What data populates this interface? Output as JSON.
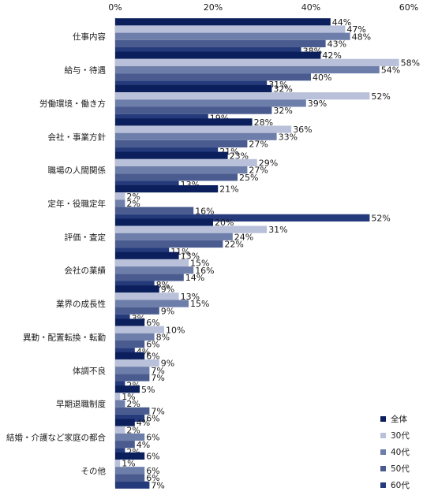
{
  "chart_data": {
    "type": "bar",
    "orientation": "horizontal",
    "categories": [
      "仕事内容",
      "給与・待遇",
      "労働環境・働き方",
      "会社・事業方針",
      "職場の人間関係",
      "定年・役職定年",
      "評価・査定",
      "会社の業績",
      "業界の成長性",
      "異動・配置転換・転勤",
      "体調不良",
      "早期退職制度",
      "結婚・介護など家庭の都合",
      "その他"
    ],
    "series": [
      {
        "name": "全体",
        "color": "#0b1f5c",
        "values": [
          44,
          42,
          32,
          28,
          23,
          21,
          20,
          13,
          9,
          6,
          6,
          5,
          4,
          6
        ]
      },
      {
        "name": "30代",
        "color": "#b9c1da",
        "values": [
          47,
          58,
          52,
          36,
          29,
          2,
          31,
          15,
          13,
          10,
          9,
          1,
          2,
          1
        ]
      },
      {
        "name": "40代",
        "color": "#6e7eaa",
        "values": [
          48,
          54,
          39,
          33,
          27,
          2,
          24,
          16,
          15,
          8,
          7,
          2,
          6,
          6
        ]
      },
      {
        "name": "50代",
        "color": "#4a5c8f",
        "values": [
          43,
          40,
          32,
          27,
          25,
          16,
          22,
          14,
          9,
          6,
          7,
          7,
          4,
          6
        ]
      },
      {
        "name": "60代",
        "color": "#243a7a",
        "values": [
          38,
          31,
          19,
          21,
          13,
          52,
          11,
          8,
          3,
          4,
          2,
          6,
          2,
          7
        ]
      }
    ],
    "xlim": [
      0,
      60
    ],
    "xticks": [
      0,
      20,
      40,
      60
    ],
    "value_suffix": "%",
    "grid": false,
    "legend": "bottom-right"
  }
}
